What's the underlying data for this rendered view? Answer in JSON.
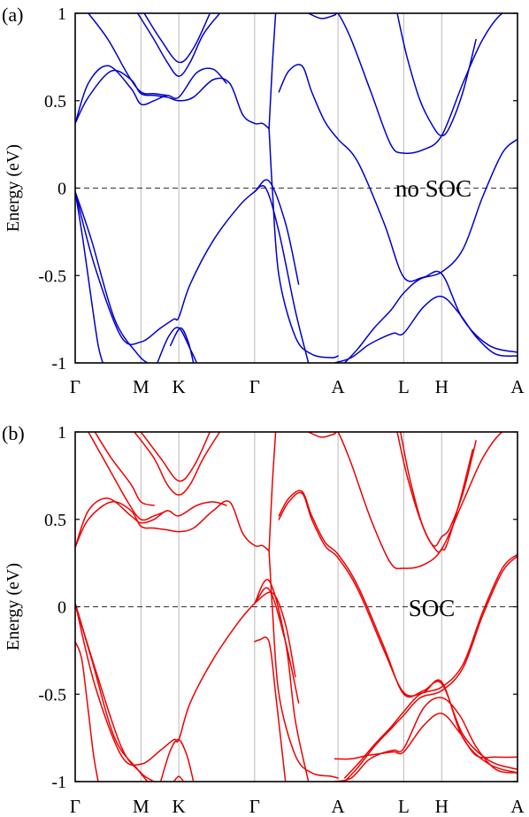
{
  "chart_data": [
    {
      "type": "line",
      "panel_label": "(a)",
      "ylabel": "Energy (eV)",
      "annotation": "no SOC",
      "color": "#0000cc",
      "ylim": [
        -1,
        1
      ],
      "yticks": [
        1,
        0.5,
        0,
        -0.5,
        -1
      ],
      "ytick_labels": [
        "1",
        "0.5",
        "0",
        "-0.5",
        "-1"
      ],
      "kpath": [
        {
          "label": "Γ",
          "x": 0
        },
        {
          "label": "M",
          "x": 1.0
        },
        {
          "label": "K",
          "x": 1.577
        },
        {
          "label": "Γ",
          "x": 2.731
        },
        {
          "label": "A",
          "x": 4.0
        },
        {
          "label": "L",
          "x": 5.0
        },
        {
          "label": "H",
          "x": 5.577
        },
        {
          "label": "A",
          "x": 6.731
        }
      ],
      "xlim": [
        0,
        6.731
      ],
      "fermi_level": 0,
      "bands": [
        {
          "x": [
            0,
            0.25,
            0.6,
            0.95,
            1.1
          ],
          "y": [
            -0.02,
            -0.3,
            -0.75,
            -0.95,
            -1.0
          ]
        },
        {
          "x": [
            0,
            0.3,
            0.7,
            1.0,
            1.3,
            1.5,
            1.577,
            1.75,
            2.1,
            2.5,
            2.731,
            2.95,
            3.2,
            3.4
          ],
          "y": [
            -0.02,
            -0.45,
            -0.85,
            -0.88,
            -0.8,
            -0.75,
            -0.74,
            -0.55,
            -0.3,
            -0.1,
            -0.02,
            0.04,
            -0.2,
            -0.55
          ]
        },
        {
          "x": [
            0,
            0.12,
            0.25,
            0.35,
            0.42
          ],
          "y": [
            -0.02,
            -0.3,
            -0.65,
            -0.9,
            -1.0
          ]
        },
        {
          "x": [
            1.25,
            1.42,
            1.577,
            1.75,
            1.85
          ],
          "y": [
            -1.0,
            -0.85,
            -0.8,
            -0.92,
            -1.0
          ]
        },
        {
          "x": [
            1.45,
            1.6,
            1.72,
            1.8
          ],
          "y": [
            -0.9,
            -0.8,
            -0.88,
            -1.0
          ]
        },
        {
          "x": [
            2.731,
            2.9,
            3.1,
            3.35,
            3.55
          ],
          "y": [
            -0.02,
            0.0,
            -0.25,
            -0.7,
            -1.0
          ]
        },
        {
          "x": [
            0,
            0.2,
            0.55,
            0.85,
            1.0,
            1.2,
            1.4,
            1.577,
            1.8,
            2.1,
            2.35,
            2.55,
            2.731,
            2.85,
            2.95
          ],
          "y": [
            0.37,
            0.52,
            0.67,
            0.62,
            0.54,
            0.53,
            0.52,
            0.5,
            0.52,
            0.62,
            0.6,
            0.42,
            0.37,
            0.37,
            0.34
          ]
        },
        {
          "x": [
            0,
            0.2,
            0.5,
            0.85,
            1.0,
            1.2,
            1.4,
            1.577,
            1.85,
            2.1,
            2.3
          ],
          "y": [
            0.37,
            0.6,
            0.7,
            0.57,
            0.48,
            0.5,
            0.53,
            0.52,
            0.66,
            0.68,
            0.6
          ]
        },
        {
          "x": [
            0.2,
            0.5,
            0.8,
            1.0,
            1.2,
            1.4
          ],
          "y": [
            1.0,
            0.85,
            0.65,
            0.55,
            0.54,
            0.53
          ]
        },
        {
          "x": [
            0.95,
            1.2,
            1.4,
            1.577,
            1.75,
            1.95,
            2.2
          ],
          "y": [
            1.0,
            0.85,
            0.72,
            0.64,
            0.72,
            0.88,
            1.0
          ]
        },
        {
          "x": [
            1.05,
            1.3,
            1.577,
            1.8,
            2.05
          ],
          "y": [
            1.0,
            0.85,
            0.72,
            0.8,
            1.0
          ]
        },
        {
          "x": [
            2.95,
            3.0,
            3.1,
            3.35,
            3.6,
            3.9,
            4.0
          ],
          "y": [
            0.34,
            0.0,
            -0.5,
            -0.85,
            -0.95,
            -0.97,
            -0.96
          ]
        },
        {
          "x": [
            2.95,
            3.0,
            3.05
          ],
          "y": [
            0.34,
            0.7,
            1.0
          ]
        },
        {
          "x": [
            3.1,
            3.25,
            3.45,
            3.6,
            3.8,
            4.0,
            4.3,
            4.7,
            5.0,
            5.3,
            5.577,
            5.9,
            6.3,
            6.731
          ],
          "y": [
            0.55,
            0.67,
            0.7,
            0.55,
            0.38,
            0.28,
            0.15,
            -0.2,
            -0.51,
            -0.51,
            -0.49,
            -0.75,
            -0.9,
            -0.94
          ]
        },
        {
          "x": [
            3.55,
            3.75,
            3.95,
            4.0,
            4.2,
            4.5,
            4.8,
            5.0,
            5.3,
            5.577,
            5.9,
            6.2,
            6.5,
            6.731
          ],
          "y": [
            1.0,
            0.97,
            0.99,
            1.0,
            0.85,
            0.55,
            0.25,
            0.2,
            0.22,
            0.3,
            0.6,
            0.85,
            1.0,
            1.0
          ]
        },
        {
          "x": [
            3.95,
            4.2,
            4.45,
            4.65,
            4.85,
            5.0,
            5.3,
            5.577,
            5.85,
            6.1,
            6.4,
            6.731
          ],
          "y": [
            -1.0,
            -0.97,
            -0.9,
            -0.86,
            -0.83,
            -0.83,
            -0.68,
            -0.62,
            -0.72,
            -0.85,
            -0.95,
            -0.96
          ]
        },
        {
          "x": [
            4.1,
            4.3,
            4.55,
            4.8,
            5.0,
            5.25,
            5.577,
            5.9,
            6.2,
            6.5,
            6.731
          ],
          "y": [
            -1.0,
            -0.92,
            -0.8,
            -0.7,
            -0.6,
            -0.52,
            -0.48,
            -0.35,
            -0.05,
            0.2,
            0.28
          ]
        },
        {
          "x": [
            4.9,
            5.05,
            5.25,
            5.45,
            5.577,
            5.7,
            5.9,
            6.1
          ],
          "y": [
            1.0,
            0.75,
            0.5,
            0.35,
            0.3,
            0.35,
            0.55,
            0.85
          ]
        }
      ]
    },
    {
      "type": "line",
      "panel_label": "(b)",
      "ylabel": "Energy (eV)",
      "annotation": "SOC",
      "color": "#ee0000",
      "ylim": [
        -1,
        1
      ],
      "yticks": [
        1,
        0.5,
        0,
        -0.5,
        -1
      ],
      "ytick_labels": [
        "1",
        "0.5",
        "0",
        "-0.5",
        "-1"
      ],
      "kpath": [
        {
          "label": "Γ",
          "x": 0
        },
        {
          "label": "M",
          "x": 1.0
        },
        {
          "label": "K",
          "x": 1.577
        },
        {
          "label": "Γ",
          "x": 2.731
        },
        {
          "label": "A",
          "x": 4.0
        },
        {
          "label": "L",
          "x": 5.0
        },
        {
          "label": "H",
          "x": 5.577
        },
        {
          "label": "A",
          "x": 6.731
        }
      ],
      "xlim": [
        0,
        6.731
      ],
      "fermi_level": 0,
      "bands": [
        {
          "x": [
            0,
            0.25,
            0.6,
            0.95,
            1.1
          ],
          "y": [
            0.02,
            -0.3,
            -0.75,
            -0.93,
            -1.0
          ]
        },
        {
          "x": [
            0,
            0.3,
            0.7,
            1.0,
            1.3,
            1.5,
            1.577,
            1.75,
            2.1,
            2.5,
            2.731,
            2.95,
            3.2,
            3.4
          ],
          "y": [
            0.02,
            -0.45,
            -0.85,
            -0.9,
            -0.82,
            -0.76,
            -0.76,
            -0.55,
            -0.3,
            -0.08,
            0.02,
            0.1,
            -0.2,
            -0.55
          ]
        },
        {
          "x": [
            0,
            0.3,
            0.7,
            1.0,
            1.2
          ],
          "y": [
            0.02,
            -0.35,
            -0.8,
            -0.95,
            -1.0
          ]
        },
        {
          "x": [
            0,
            0.1,
            0.2,
            0.28,
            0.35
          ],
          "y": [
            -0.2,
            -0.3,
            -0.6,
            -0.85,
            -1.0
          ]
        },
        {
          "x": [
            1.3,
            1.45,
            1.577,
            1.7,
            1.8
          ],
          "y": [
            -1.0,
            -0.82,
            -0.76,
            -0.85,
            -1.0
          ]
        },
        {
          "x": [
            1.5,
            1.577,
            1.65
          ],
          "y": [
            -1.0,
            -0.97,
            -1.0
          ]
        },
        {
          "x": [
            2.731,
            2.95,
            3.2,
            3.35,
            3.55
          ],
          "y": [
            0.02,
            0.15,
            -0.2,
            -0.65,
            -1.0
          ]
        },
        {
          "x": [
            2.731,
            3.0,
            3.2,
            3.35
          ],
          "y": [
            0.02,
            0.08,
            -0.1,
            -0.4
          ]
        },
        {
          "x": [
            2.731,
            2.8,
            2.95,
            3.05,
            3.2
          ],
          "y": [
            -0.2,
            -0.19,
            -0.2,
            -0.5,
            -1.0
          ]
        },
        {
          "x": [
            0,
            0.2,
            0.55,
            0.85,
            1.0,
            1.2,
            1.4,
            1.577,
            1.8,
            2.1,
            2.35,
            2.55,
            2.731,
            2.85,
            2.95
          ],
          "y": [
            0.34,
            0.5,
            0.6,
            0.55,
            0.46,
            0.45,
            0.44,
            0.43,
            0.45,
            0.55,
            0.6,
            0.42,
            0.35,
            0.35,
            0.32
          ]
        },
        {
          "x": [
            0,
            0.2,
            0.5,
            0.85,
            1.0,
            1.2,
            1.4,
            1.577,
            1.85,
            2.1,
            2.3
          ],
          "y": [
            0.34,
            0.55,
            0.62,
            0.52,
            0.48,
            0.5,
            0.55,
            0.52,
            0.58,
            0.6,
            0.58
          ]
        },
        {
          "x": [
            0.2,
            0.5,
            0.8,
            1.0,
            1.2,
            1.4
          ],
          "y": [
            1.0,
            0.8,
            0.6,
            0.5,
            0.52,
            0.55
          ]
        },
        {
          "x": [
            0.3,
            0.55,
            0.85,
            1.0,
            1.2
          ],
          "y": [
            1.0,
            0.85,
            0.7,
            0.6,
            0.58
          ]
        },
        {
          "x": [
            0.9,
            1.2,
            1.4,
            1.577,
            1.75,
            1.95,
            2.2
          ],
          "y": [
            1.0,
            0.85,
            0.7,
            0.64,
            0.7,
            0.85,
            1.0
          ]
        },
        {
          "x": [
            1.0,
            1.3,
            1.577,
            1.8,
            2.05
          ],
          "y": [
            1.0,
            0.85,
            0.72,
            0.8,
            1.0
          ]
        },
        {
          "x": [
            2.95,
            3.0,
            3.1,
            3.35,
            3.6,
            3.9,
            4.0
          ],
          "y": [
            0.32,
            0.0,
            -0.5,
            -0.85,
            -0.95,
            -0.97,
            -0.98
          ]
        },
        {
          "x": [
            2.95,
            3.0,
            3.05
          ],
          "y": [
            0.32,
            0.7,
            1.0
          ]
        },
        {
          "x": [
            3.1,
            3.25,
            3.45,
            3.6,
            3.8,
            4.0,
            4.3,
            4.7,
            5.0,
            5.3,
            5.577,
            5.9,
            6.3,
            6.731
          ],
          "y": [
            0.5,
            0.6,
            0.65,
            0.5,
            0.35,
            0.28,
            0.1,
            -0.25,
            -0.49,
            -0.49,
            -0.43,
            -0.75,
            -0.9,
            -0.95
          ]
        },
        {
          "x": [
            3.1,
            3.25,
            3.45,
            3.6,
            3.8,
            4.0,
            4.3,
            4.7,
            5.0,
            5.3,
            5.577,
            5.9,
            6.3,
            6.731
          ],
          "y": [
            0.52,
            0.62,
            0.66,
            0.52,
            0.37,
            0.3,
            0.12,
            -0.23,
            -0.5,
            -0.48,
            -0.44,
            -0.73,
            -0.88,
            -0.93
          ]
        },
        {
          "x": [
            3.55,
            3.75,
            3.95,
            4.0,
            4.2,
            4.5,
            4.8,
            5.0,
            5.3,
            5.577,
            5.9,
            6.2,
            6.5,
            6.731
          ],
          "y": [
            1.0,
            0.97,
            0.99,
            1.0,
            0.82,
            0.5,
            0.25,
            0.22,
            0.24,
            0.33,
            0.6,
            0.85,
            1.0,
            1.0
          ]
        },
        {
          "x": [
            3.95,
            4.2,
            4.45,
            4.65,
            4.85,
            5.0,
            5.3,
            5.577,
            5.85,
            6.1,
            6.4,
            6.731
          ],
          "y": [
            -0.87,
            -0.87,
            -0.85,
            -0.84,
            -0.83,
            -0.83,
            -0.68,
            -0.61,
            -0.72,
            -0.85,
            -0.86,
            -0.86
          ]
        },
        {
          "x": [
            3.95,
            4.2,
            4.45,
            4.65,
            4.85,
            5.0,
            5.3,
            5.577,
            5.85,
            6.1,
            6.4,
            6.731
          ],
          "y": [
            -1.0,
            -0.98,
            -0.88,
            -0.84,
            -0.82,
            -0.81,
            -0.58,
            -0.52,
            -0.62,
            -0.8,
            -0.93,
            -0.95
          ]
        },
        {
          "x": [
            4.1,
            4.3,
            4.55,
            4.8,
            5.0,
            5.25,
            5.577,
            5.9,
            6.2,
            6.5,
            6.731
          ],
          "y": [
            -1.0,
            -0.92,
            -0.8,
            -0.7,
            -0.62,
            -0.52,
            -0.48,
            -0.35,
            -0.05,
            0.2,
            0.29
          ]
        },
        {
          "x": [
            4.1,
            4.3,
            4.55,
            4.8,
            5.0,
            5.25,
            5.577,
            5.9,
            6.2,
            6.5,
            6.731
          ],
          "y": [
            -0.98,
            -0.9,
            -0.79,
            -0.69,
            -0.6,
            -0.5,
            -0.46,
            -0.33,
            -0.03,
            0.22,
            0.3
          ]
        },
        {
          "x": [
            4.9,
            5.05,
            5.25,
            5.45,
            5.577,
            5.7,
            5.9,
            6.1
          ],
          "y": [
            1.0,
            0.75,
            0.5,
            0.35,
            0.4,
            0.45,
            0.65,
            0.95
          ]
        },
        {
          "x": [
            4.95,
            5.1,
            5.3,
            5.5,
            5.577,
            5.65,
            5.85,
            6.05
          ],
          "y": [
            1.0,
            0.72,
            0.45,
            0.32,
            0.33,
            0.35,
            0.6,
            0.9
          ]
        }
      ]
    }
  ]
}
